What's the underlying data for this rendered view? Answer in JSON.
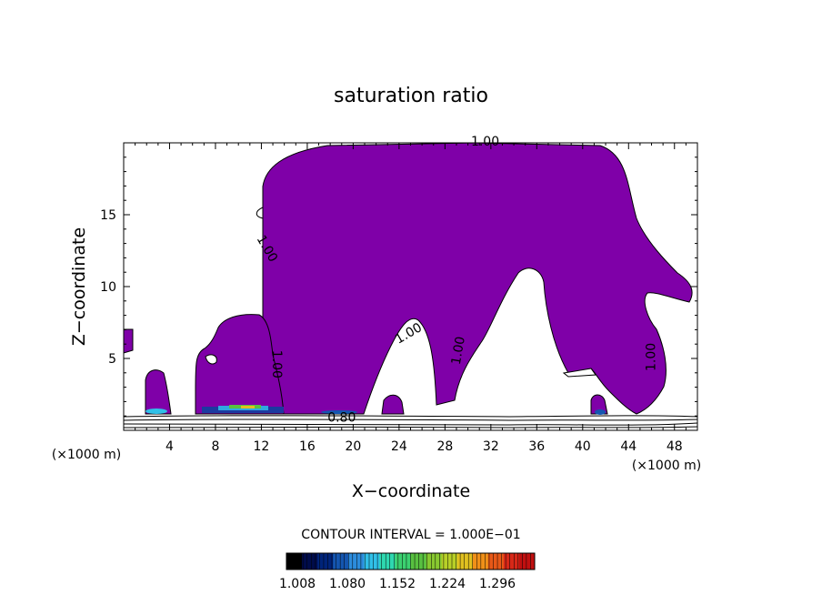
{
  "chart_data": {
    "type": "contour",
    "title": "saturation ratio",
    "xlabel": "X−coordinate",
    "ylabel": "Z−coordinate",
    "x_unit_label": "(×1000 m)",
    "z_unit_label": "(×1000 m)",
    "xlim": [
      0,
      50
    ],
    "ylim": [
      0,
      20
    ],
    "x_ticks": [
      4,
      8,
      12,
      16,
      20,
      24,
      28,
      32,
      36,
      40,
      44,
      48
    ],
    "y_ticks": [
      5,
      10,
      15
    ],
    "contour_interval_text": "CONTOUR INTERVAL = 1.000E−01",
    "contour_labels": [
      {
        "text": "1.00",
        "x": 31.5,
        "z": 19.8
      },
      {
        "text": "1.00",
        "x": 12.2,
        "z": 12.5
      },
      {
        "text": "1.00",
        "x": 13.0,
        "z": 4.6
      },
      {
        "text": "1.00",
        "x": 25.0,
        "z": 6.5
      },
      {
        "text": "1.00",
        "x": 29.5,
        "z": 5.5
      },
      {
        "text": "1.00",
        "x": 46.3,
        "z": 5.1
      },
      {
        "text": "0.80",
        "x": 19.0,
        "z": 0.6
      }
    ],
    "filled_region": {
      "level": "> 1.00",
      "color": "#7f00a8"
    },
    "colorbar": {
      "ticks": [
        "1.008",
        "1.080",
        "1.152",
        "1.224",
        "1.296"
      ],
      "colors": [
        "#000000",
        "#000c4a",
        "#00247a",
        "#1456b0",
        "#2c8cdc",
        "#30c0e8",
        "#2ed8b0",
        "#3cd070",
        "#58c040",
        "#88c830",
        "#b8d028",
        "#e0c020",
        "#f09018",
        "#e85818",
        "#d82818",
        "#c01010"
      ]
    }
  }
}
